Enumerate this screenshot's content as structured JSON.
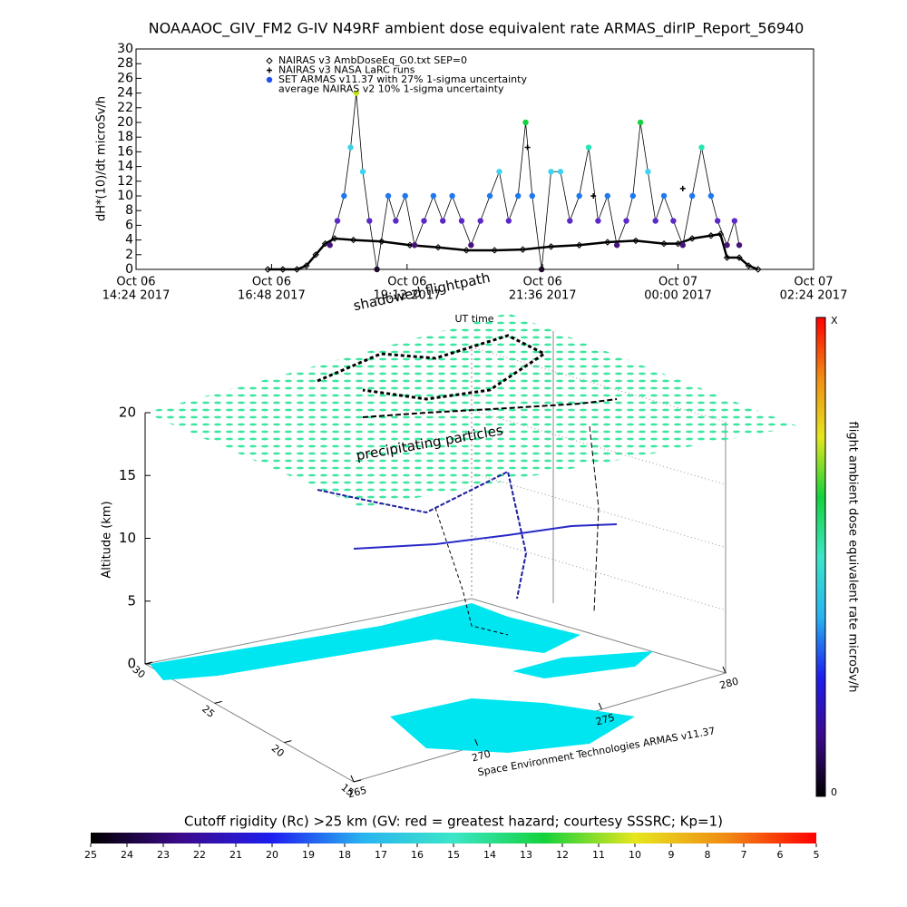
{
  "chart_data": [
    {
      "type": "line",
      "title": "NOAAAOC_GIV_FM2 G-IV   N49RF  ambient dose equivalent rate ARMAS_dirIP_Report_56940",
      "y_label": "dH*(10)/dt microSv/h",
      "x_label": "UT time",
      "xlim": [
        "2017-10-06 14:24",
        "2017-10-07 02:24"
      ],
      "xticks": [
        {
          "value": "2017-10-06 14:24",
          "label": [
            "Oct 06",
            "14:24 2017"
          ]
        },
        {
          "value": "2017-10-06 16:48",
          "label": [
            "Oct 06",
            "16:48 2017"
          ]
        },
        {
          "value": "2017-10-06 19:12",
          "label": [
            "Oct 06",
            "19:12 2017"
          ]
        },
        {
          "value": "2017-10-06 21:36",
          "label": [
            "Oct 06",
            "21:36 2017"
          ]
        },
        {
          "value": "2017-10-07 00:00",
          "label": [
            "Oct 07",
            "00:00 2017"
          ]
        },
        {
          "value": "2017-10-07 02:24",
          "label": [
            "Oct 07",
            "02:24 2017"
          ]
        }
      ],
      "ylim": [
        0,
        30
      ],
      "yticks": [
        0,
        2,
        4,
        6,
        8,
        10,
        12,
        14,
        16,
        18,
        20,
        22,
        24,
        26,
        28,
        30
      ],
      "legend": "top-left",
      "series": [
        {
          "name": "NAIRAS v3 AmbDoseEq_G0.txt SEP=0",
          "color": "#000000",
          "marker": "diamond",
          "x": [
            "2017-10-06 16:44",
            "2017-10-06 17:00",
            "2017-10-06 17:15",
            "2017-10-06 17:25",
            "2017-10-06 17:35",
            "2017-10-06 17:45",
            "2017-10-06 17:55",
            "2017-10-06 18:15",
            "2017-10-06 18:45",
            "2017-10-06 19:15",
            "2017-10-06 19:45",
            "2017-10-06 20:15",
            "2017-10-06 20:45",
            "2017-10-06 21:15",
            "2017-10-06 21:45",
            "2017-10-06 22:15",
            "2017-10-06 22:45",
            "2017-10-06 23:15",
            "2017-10-06 23:45",
            "2017-10-07 00:00",
            "2017-10-07 00:15",
            "2017-10-07 00:35",
            "2017-10-07 00:45",
            "2017-10-07 00:52",
            "2017-10-07 01:05",
            "2017-10-07 01:15",
            "2017-10-07 01:25"
          ],
          "values": [
            0,
            0,
            0,
            0.5,
            2,
            3.5,
            4.2,
            4,
            3.8,
            3.3,
            3,
            2.6,
            2.6,
            2.7,
            3.1,
            3.3,
            3.7,
            3.9,
            3.5,
            3.5,
            4.2,
            4.6,
            4.8,
            1.6,
            1.6,
            0.5,
            0
          ]
        },
        {
          "name": "NAIRAS v3 NASA LaRC runs",
          "color": "#000000",
          "marker": "plus",
          "x": [
            "2017-10-06 19:20",
            "2017-10-06 21:20",
            "2017-10-06 22:30",
            "2017-10-07 00:05"
          ],
          "values": [
            3.3,
            16.6,
            10,
            11
          ]
        },
        {
          "name": "SET ARMAS v11.37 with 27% 1-sigma uncertainty",
          "color": "#1e50f0",
          "marker": "circle",
          "x": [
            "2017-10-06 17:50",
            "2017-10-06 17:58",
            "2017-10-06 18:05",
            "2017-10-06 18:12",
            "2017-10-06 18:18",
            "2017-10-06 18:25",
            "2017-10-06 18:32",
            "2017-10-06 18:40",
            "2017-10-06 18:52",
            "2017-10-06 19:00",
            "2017-10-06 19:10",
            "2017-10-06 19:20",
            "2017-10-06 19:30",
            "2017-10-06 19:40",
            "2017-10-06 19:50",
            "2017-10-06 20:00",
            "2017-10-06 20:10",
            "2017-10-06 20:20",
            "2017-10-06 20:30",
            "2017-10-06 20:40",
            "2017-10-06 20:50",
            "2017-10-06 21:00",
            "2017-10-06 21:10",
            "2017-10-06 21:18",
            "2017-10-06 21:25",
            "2017-10-06 21:35",
            "2017-10-06 21:45",
            "2017-10-06 21:55",
            "2017-10-06 22:05",
            "2017-10-06 22:15",
            "2017-10-06 22:25",
            "2017-10-06 22:35",
            "2017-10-06 22:45",
            "2017-10-06 22:55",
            "2017-10-06 23:05",
            "2017-10-06 23:12",
            "2017-10-06 23:20",
            "2017-10-06 23:28",
            "2017-10-06 23:36",
            "2017-10-06 23:45",
            "2017-10-06 23:55",
            "2017-10-07 00:05",
            "2017-10-07 00:15",
            "2017-10-07 00:25",
            "2017-10-07 00:35",
            "2017-10-07 00:42",
            "2017-10-07 00:52",
            "2017-10-07 01:00",
            "2017-10-07 01:05"
          ],
          "values": [
            3.3,
            6.6,
            10,
            16.6,
            24,
            13.3,
            6.6,
            0,
            10,
            6.6,
            10,
            3.3,
            6.6,
            10,
            6.6,
            10,
            6.6,
            3.3,
            6.6,
            10,
            13.3,
            6.6,
            10,
            20,
            10,
            0,
            13.3,
            13.3,
            6.6,
            10,
            16.6,
            6.6,
            10,
            3.3,
            6.6,
            10,
            20,
            13.3,
            6.6,
            10,
            6.6,
            3.3,
            10,
            16.6,
            10,
            6.6,
            3.3,
            6.6,
            3.3
          ],
          "colors": [
            "#46147a",
            "#5a28c8",
            "#1e78f0",
            "#3cd2e6",
            "#c8e61e",
            "#3cd2f0",
            "#5a28c8",
            "#1e0a28",
            "#1e78f0",
            "#5a28c8",
            "#1e78f0",
            "#46147a",
            "#5a28c8",
            "#1e78f0",
            "#5a28c8",
            "#1e78f0",
            "#5a28c8",
            "#46147a",
            "#5a28c8",
            "#1e78f0",
            "#3cd2f0",
            "#5a28c8",
            "#1e78f0",
            "#14d23c",
            "#1e78f0",
            "#1e0a28",
            "#3cd2f0",
            "#3cd2f0",
            "#5a28c8",
            "#1e78f0",
            "#28e6b4",
            "#5a28c8",
            "#1e78f0",
            "#46147a",
            "#5a28c8",
            "#1e78f0",
            "#14d23c",
            "#3cd2f0",
            "#5a28c8",
            "#1e78f0",
            "#5a28c8",
            "#46147a",
            "#1e78f0",
            "#28e6b4",
            "#1e78f0",
            "#5a28c8",
            "#46147a",
            "#5a28c8",
            "#46147a"
          ]
        },
        {
          "name": "average NAIRAS v2 10% 1-sigma uncertainty",
          "color": "#000000",
          "marker": "none"
        }
      ]
    },
    {
      "type": "surface3d",
      "annotations": [
        "shadowed flightpath",
        "precipitating particles"
      ],
      "z_label": "Altitude (km)",
      "zlim": [
        0,
        20
      ],
      "zticks": [
        0,
        5,
        10,
        15,
        20
      ],
      "ylim": [
        30,
        15
      ],
      "yticks": [
        30,
        25,
        20,
        15
      ],
      "xlim": [
        265,
        280
      ],
      "xticks": [
        265,
        270,
        275,
        280
      ],
      "credit": "Space Environment Technologies ARMAS v11.37"
    },
    {
      "type": "colorbar",
      "label": "flight ambient dose equivalent rate microSv/h",
      "tick_labels": [
        "X",
        "0"
      ],
      "colors": [
        "#000000",
        "#3c0a8c",
        "#1e1ef0",
        "#28b4f0",
        "#3ce6c8",
        "#14d23c",
        "#e6e61e",
        "#f08c14",
        "#ff0000"
      ]
    },
    {
      "type": "colorbar",
      "title": "Cutoff rigidity (Rc) >25 km (GV: red = greatest hazard; courtesy SSSRC; Kp=1)",
      "lim": [
        25,
        5
      ],
      "ticks": [
        25,
        24,
        23,
        22,
        21,
        20,
        19,
        18,
        17,
        16,
        15,
        14,
        13,
        12,
        11,
        10,
        9,
        8,
        7,
        6,
        5
      ],
      "colors": [
        "#000000",
        "#3c0a8c",
        "#1e1ef0",
        "#28b4f0",
        "#3ce6c8",
        "#14d23c",
        "#e6e61e",
        "#f08c14",
        "#ff0000"
      ]
    }
  ]
}
